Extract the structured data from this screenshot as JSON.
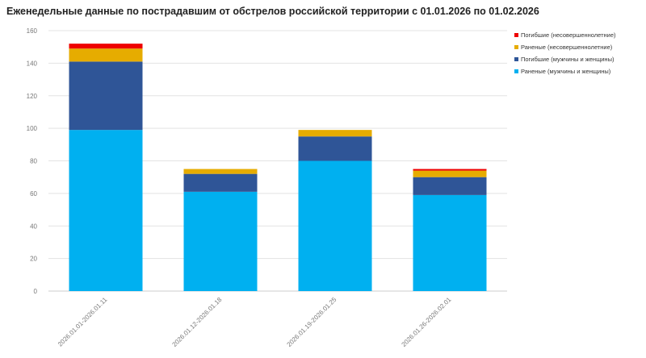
{
  "chart_data": {
    "type": "bar",
    "stacked": true,
    "title": "Еженедельные данные по пострадавшим от обстрелов российской территории с 01.01.2026 по 01.02.2026",
    "xlabel": "",
    "ylabel": "",
    "ylim": [
      0,
      160
    ],
    "yticks": [
      0,
      20,
      40,
      60,
      80,
      100,
      120,
      140,
      160
    ],
    "grid": true,
    "legend_position": "top-right",
    "categories": [
      "2026.01.01-2026.01.11",
      "2026.01.12-2026.01.18",
      "2026.01.19-2026.01.25",
      "2026.01.26-2026.02.01"
    ],
    "series": [
      {
        "name": "Раненые (мужчины и женщины)",
        "color": "#00b0f0",
        "values": [
          99,
          61,
          80,
          59
        ]
      },
      {
        "name": "Погибшие (мужчины и женщины)",
        "color": "#2f5597",
        "values": [
          42,
          11,
          15,
          11
        ]
      },
      {
        "name": "Раненые (несовершеннолетние)",
        "color": "#e6ac00",
        "values": [
          8,
          3,
          4,
          4
        ]
      },
      {
        "name": "Погибшие (несовершеннолетние)",
        "color": "#ee0000",
        "values": [
          3,
          0,
          0,
          1
        ]
      }
    ]
  }
}
